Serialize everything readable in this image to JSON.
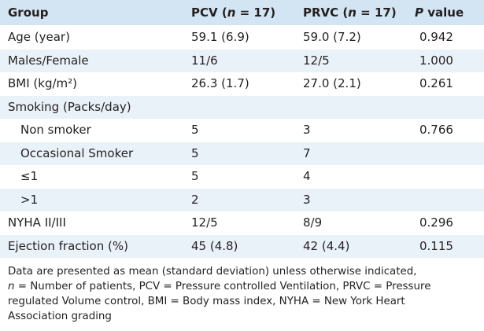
{
  "table": {
    "headers": {
      "group": "Group",
      "pcv": "PCV",
      "pcv_n": "(n = 17)",
      "prvc": "PRVC",
      "prvc_n": "(n = 17)",
      "p": "P value"
    },
    "rows": [
      {
        "label": "Age (year)",
        "pcv": "59.1 (6.9)",
        "prvc": "59.0 (7.2)",
        "p": "0.942",
        "indent": false
      },
      {
        "label": "Males/Female",
        "pcv": "11/6",
        "prvc": "12/5",
        "p": "1.000",
        "indent": false
      },
      {
        "label": "BMI (kg/m²)",
        "pcv": "26.3 (1.7)",
        "prvc": "27.0 (2.1)",
        "p": "0.261",
        "indent": false
      },
      {
        "label": "Smoking (Packs/day)",
        "pcv": "",
        "prvc": "",
        "p": "",
        "indent": false
      },
      {
        "label": "Non smoker",
        "pcv": "5",
        "prvc": "3",
        "p": "0.766",
        "indent": true
      },
      {
        "label": "Occasional Smoker",
        "pcv": "5",
        "prvc": "7",
        "p": "",
        "indent": true
      },
      {
        "label": "≤1",
        "pcv": "5",
        "prvc": "4",
        "p": "",
        "indent": true
      },
      {
        "label": ">1",
        "pcv": "2",
        "prvc": "3",
        "p": "",
        "indent": true
      },
      {
        "label": "NYHA II/III",
        "pcv": "12/5",
        "prvc": "8/9",
        "p": "0.296",
        "indent": false
      },
      {
        "label": "Ejection fraction (%)",
        "pcv": "45 (4.8)",
        "prvc": "42 (4.4)",
        "p": "0.115",
        "indent": false
      }
    ]
  },
  "footnote": {
    "line1": "Data are presented as mean (standard deviation) unless otherwise indicated,",
    "n_letter": "n",
    "line2_rest": " = Number of patients, PCV = Pressure controlled Ventilation, PRVC = Pressure",
    "line3": "regulated Volume control, BMI = Body mass index, NYHA = New York Heart",
    "line4": "Association grading"
  },
  "colors": {
    "header_bg": "#d3e4f2",
    "row_shade": "#eaf2f9",
    "text": "#231f20"
  }
}
